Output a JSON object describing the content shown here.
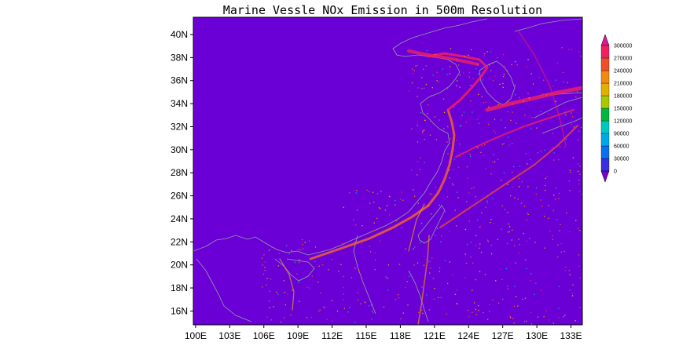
{
  "title": "Marine Vessle NOx Emission in 500m Resolution",
  "map": {
    "lon_range": [
      99.8,
      134.0
    ],
    "lat_range": [
      14.8,
      41.5
    ],
    "background_color": "#6a00d6",
    "coastline_color": "#8fa0a0"
  },
  "lon_ticks": [
    "100E",
    "103E",
    "106E",
    "109E",
    "112E",
    "115E",
    "118E",
    "121E",
    "124E",
    "127E",
    "130E",
    "133E"
  ],
  "lat_ticks": [
    "16N",
    "18N",
    "20N",
    "22N",
    "24N",
    "26N",
    "28N",
    "30N",
    "32N",
    "34N",
    "36N",
    "38N",
    "40N"
  ],
  "colorbar": {
    "labels": [
      "0",
      "30000",
      "60000",
      "90000",
      "120000",
      "150000",
      "180000",
      "210000",
      "240000",
      "270000",
      "300000"
    ],
    "colors": [
      "#7a00d0",
      "#3a2ee0",
      "#0a6ff0",
      "#00a8e8",
      "#00c8c0",
      "#00b840",
      "#a8c800",
      "#e0b000",
      "#f08a10",
      "#f05028",
      "#f02060",
      "#e01890"
    ]
  },
  "chart_data": {
    "type": "heatmap",
    "title": "Marine Vessle NOx Emission in 500m Resolution",
    "x_axis": {
      "ticks": [
        "100E",
        "103E",
        "106E",
        "109E",
        "112E",
        "115E",
        "118E",
        "121E",
        "124E",
        "127E",
        "130E",
        "133E"
      ],
      "range": [
        99.8,
        134.0
      ]
    },
    "y_axis": {
      "ticks": [
        "16N",
        "18N",
        "20N",
        "22N",
        "24N",
        "26N",
        "28N",
        "30N",
        "32N",
        "34N",
        "36N",
        "38N",
        "40N"
      ],
      "range": [
        14.8,
        41.5
      ]
    },
    "color_scale": {
      "min": 0,
      "max": 300000,
      "levels": [
        0,
        30000,
        60000,
        90000,
        120000,
        150000,
        180000,
        210000,
        240000,
        270000,
        300000
      ]
    },
    "legend_position": "right"
  }
}
